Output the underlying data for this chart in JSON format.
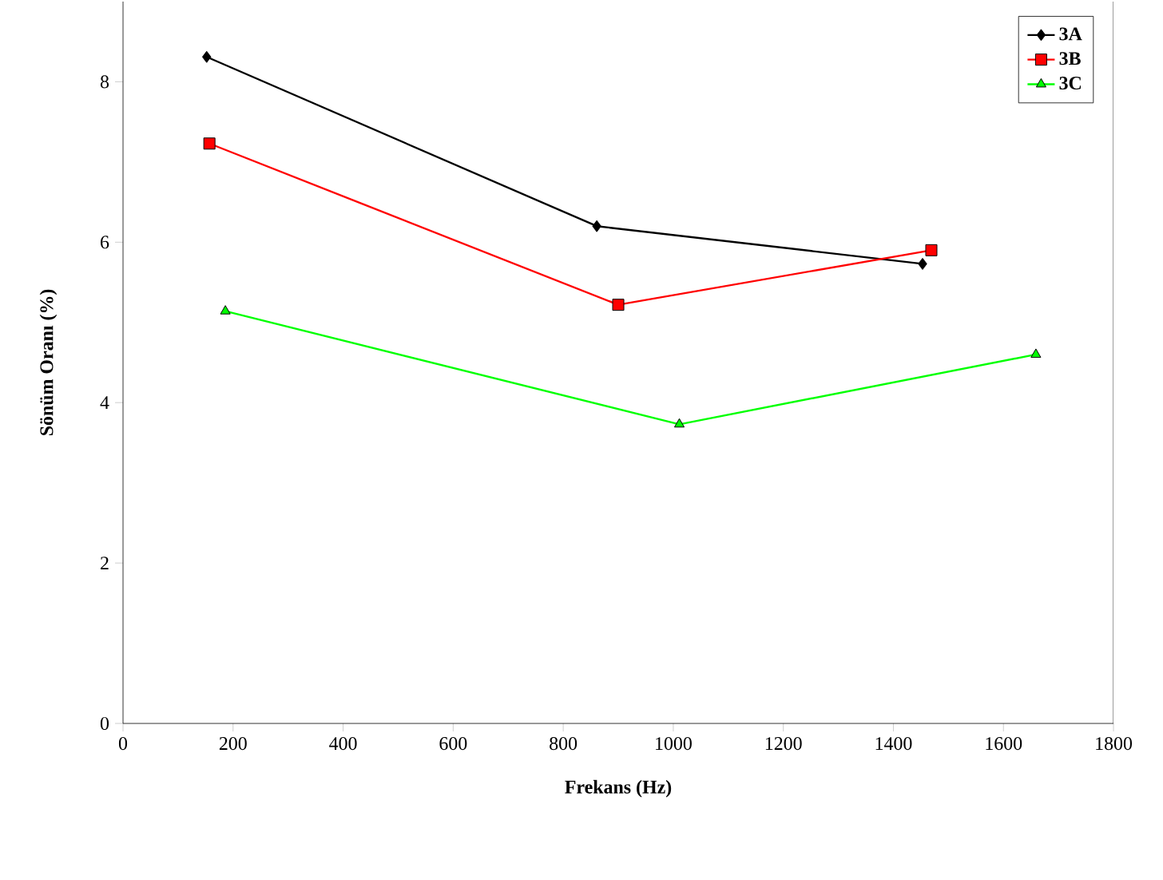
{
  "chart_data": {
    "type": "line",
    "xlabel": "Frekans (Hz)",
    "ylabel": "Sönüm Oranı (%)",
    "xlim": [
      0,
      1800
    ],
    "xticks": [
      0,
      200,
      400,
      600,
      800,
      1000,
      1200,
      1400,
      1600,
      1800
    ],
    "ylim": [
      0,
      9
    ],
    "yticks": [
      0,
      2,
      4,
      6,
      8
    ],
    "legend": "top right",
    "grid": false,
    "line_style": "solid",
    "series": [
      {
        "name": "3A",
        "color": "#000000",
        "marker": "diamond",
        "x": [
          152,
          861,
          1453
        ],
        "values": [
          8.31,
          6.2,
          5.73
        ]
      },
      {
        "name": "3B",
        "color": "#ff0000",
        "marker": "square",
        "x": [
          157,
          900,
          1469
        ],
        "values": [
          7.23,
          5.22,
          5.9
        ]
      },
      {
        "name": "3C",
        "color": "#00ff00",
        "marker": "triangle",
        "x": [
          186,
          1011,
          1659
        ],
        "values": [
          5.14,
          3.73,
          4.6
        ]
      }
    ]
  }
}
